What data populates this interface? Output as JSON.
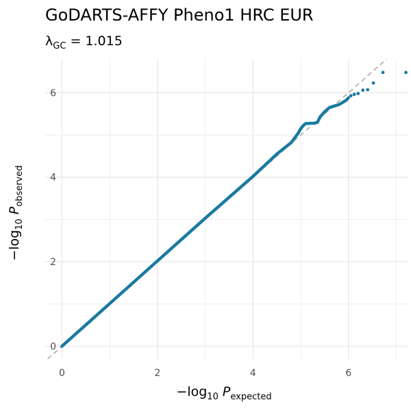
{
  "chart_data": {
    "type": "scatter",
    "title": "GoDARTS-AFFY Pheno1 HRC EUR",
    "subtitle": {
      "symbol": "λ",
      "subscript": "GC",
      "equals": " = ",
      "value": "1.015"
    },
    "xlabel": {
      "prefix": "−log",
      "base": "10",
      "var": "P",
      "subscript": "expected"
    },
    "ylabel": {
      "prefix": "−log",
      "base": "10",
      "var": "P",
      "subscript": "observed"
    },
    "xlim": [
      -0.35,
      7.25
    ],
    "ylim": [
      -0.3,
      6.8
    ],
    "x_ticks": [
      0,
      2,
      4,
      6
    ],
    "y_ticks": [
      0,
      2,
      4,
      6
    ],
    "x_tick_labels": [
      "0",
      "2",
      "4",
      "6"
    ],
    "y_tick_labels": [
      "0",
      "2",
      "4",
      "6"
    ],
    "grid": true,
    "reference_line": {
      "slope": 1,
      "intercept": 0,
      "style": "dashed",
      "color": "#b3b3b3"
    },
    "point_color": "#1a7aa0",
    "background": "#ffffff",
    "grid_color": "#ebebeb",
    "series": [
      {
        "dense_path": [
          [
            0.0,
            0.0
          ],
          [
            1.0,
            1.01
          ],
          [
            2.0,
            2.02
          ],
          [
            3.0,
            3.03
          ],
          [
            4.0,
            4.02
          ],
          [
            4.5,
            4.55
          ],
          [
            4.8,
            4.82
          ],
          [
            4.95,
            5.05
          ],
          [
            5.0,
            5.15
          ],
          [
            5.05,
            5.22
          ],
          [
            5.1,
            5.27
          ],
          [
            5.3,
            5.28
          ],
          [
            5.35,
            5.3
          ],
          [
            5.4,
            5.42
          ],
          [
            5.5,
            5.55
          ],
          [
            5.6,
            5.65
          ],
          [
            5.8,
            5.72
          ],
          [
            5.95,
            5.82
          ],
          [
            6.0,
            5.88
          ]
        ],
        "points": [
          [
            6.05,
            5.93
          ],
          [
            6.12,
            5.96
          ],
          [
            6.2,
            5.98
          ],
          [
            6.3,
            6.06
          ],
          [
            6.4,
            6.07
          ],
          [
            6.52,
            6.23
          ],
          [
            6.72,
            6.48
          ],
          [
            7.2,
            6.48
          ]
        ]
      }
    ]
  }
}
